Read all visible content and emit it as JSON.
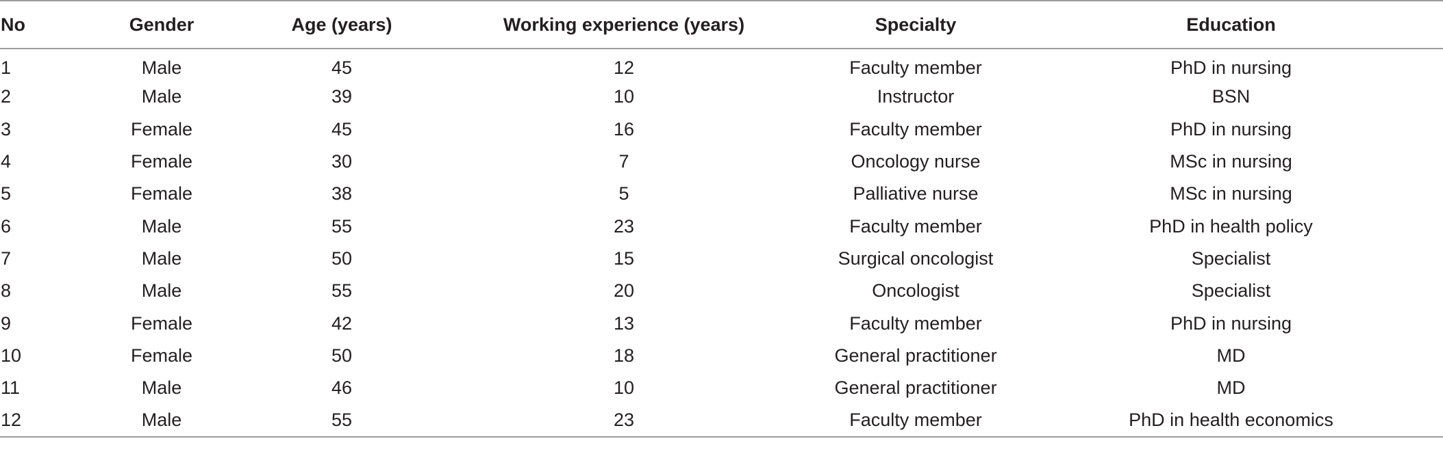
{
  "table": {
    "columns": [
      "No",
      "Gender",
      "Age (years)",
      "Working experience (years)",
      "Specialty",
      "Education"
    ],
    "rows": [
      [
        "1",
        "Male",
        "45",
        "12",
        "Faculty member",
        "PhD in nursing"
      ],
      [
        "2",
        "Male",
        "39",
        "10",
        "Instructor",
        "BSN"
      ],
      [
        "3",
        "Female",
        "45",
        "16",
        "Faculty member",
        "PhD in nursing"
      ],
      [
        "4",
        "Female",
        "30",
        "7",
        "Oncology nurse",
        "MSc in nursing"
      ],
      [
        "5",
        "Female",
        "38",
        "5",
        "Palliative nurse",
        "MSc in nursing"
      ],
      [
        "6",
        "Male",
        "55",
        "23",
        "Faculty member",
        "PhD in health policy"
      ],
      [
        "7",
        "Male",
        "50",
        "15",
        "Surgical oncologist",
        "Specialist"
      ],
      [
        "8",
        "Male",
        "55",
        "20",
        "Oncologist",
        "Specialist"
      ],
      [
        "9",
        "Female",
        "42",
        "13",
        "Faculty member",
        "PhD in nursing"
      ],
      [
        "10",
        "Female",
        "50",
        "18",
        "General practitioner",
        "MD"
      ],
      [
        "11",
        "Male",
        "46",
        "10",
        "General practitioner",
        "MD"
      ],
      [
        "12",
        "Male",
        "55",
        "23",
        "Faculty member",
        "PhD in health economics"
      ]
    ]
  }
}
